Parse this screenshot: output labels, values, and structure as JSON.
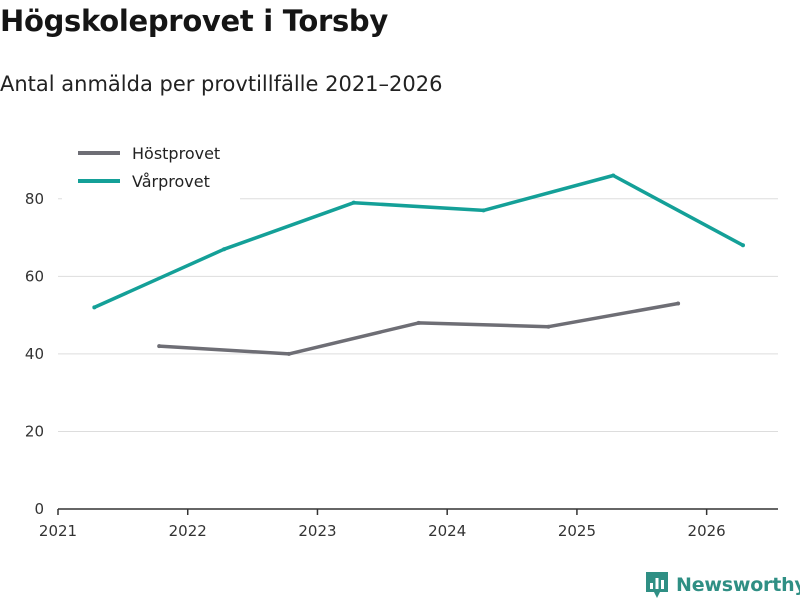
{
  "header": {
    "title": "Högskoleprovet i Torsby",
    "subtitle": "Antal anmälda per provtillfälle 2021–2026"
  },
  "brand": {
    "name": "Newsworthy",
    "color": "#2f8f84"
  },
  "colors": {
    "host": "#6e6e75",
    "var": "#14a098",
    "grid": "#dddddd",
    "axis": "#333333"
  },
  "chart_data": {
    "type": "line",
    "title": "Högskoleprovet i Torsby",
    "subtitle": "Antal anmälda per provtillfälle 2021–2026",
    "xlabel": "",
    "ylabel": "",
    "xlim": [
      2021,
      2026.55
    ],
    "ylim": [
      0,
      90
    ],
    "x_ticks": [
      "2021",
      "2022",
      "2023",
      "2024",
      "2025",
      "2026"
    ],
    "y_ticks": [
      "0",
      "20",
      "40",
      "60",
      "80"
    ],
    "y_tick_values": [
      0,
      20,
      40,
      60,
      80
    ],
    "grid": true,
    "legend_position": "top-left",
    "series": [
      {
        "name": "Höstprovet",
        "key": "host",
        "x": [
          2021.78,
          2022.78,
          2023.78,
          2024.78,
          2025.78
        ],
        "values": [
          42,
          40,
          48,
          47,
          53
        ]
      },
      {
        "name": "Vårprovet",
        "key": "var",
        "x": [
          2021.28,
          2022.28,
          2023.28,
          2024.28,
          2025.28,
          2026.28
        ],
        "values": [
          52,
          67,
          79,
          77,
          86,
          68
        ]
      }
    ]
  }
}
